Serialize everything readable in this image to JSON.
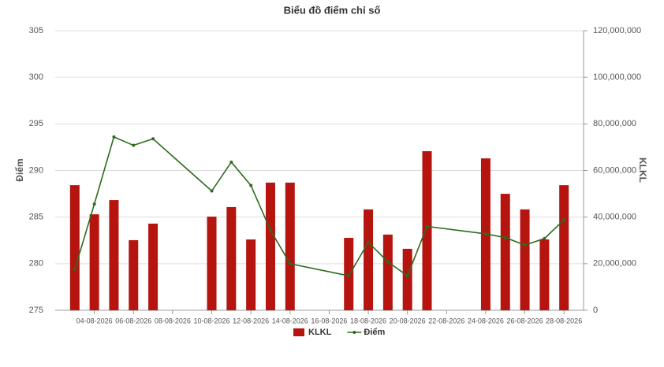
{
  "chart_data": {
    "type": "bar-line",
    "title": "Biểu đồ điểm chỉ số",
    "y_label": "Điểm",
    "y2_label": "KLKL",
    "x": [
      "03-08-2026",
      "04-08-2026",
      "05-08-2026",
      "06-08-2026",
      "07-08-2026",
      "10-08-2026",
      "11-08-2026",
      "12-08-2026",
      "13-08-2026",
      "14-08-2026",
      "17-08-2026",
      "18-08-2026",
      "19-08-2026",
      "20-08-2026",
      "21-08-2026",
      "24-08-2026",
      "25-08-2026",
      "26-08-2026",
      "27-08-2026",
      "28-08-2026"
    ],
    "xlim": [
      "02-08-2026",
      "29-08-2026"
    ],
    "xticks": [
      "04-08-2026",
      "06-08-2026",
      "08-08-2026",
      "10-08-2026",
      "12-08-2026",
      "14-08-2026",
      "16-08-2026",
      "18-08-2026",
      "20-08-2026",
      "22-08-2026",
      "24-08-2026",
      "26-08-2026",
      "28-08-2026"
    ],
    "ylim": [
      275,
      305
    ],
    "yticks": [
      275,
      280,
      285,
      290,
      295,
      300,
      305
    ],
    "y2lim": [
      0,
      120000000
    ],
    "y2ticks": [
      0,
      {
        "value": 20000000,
        "label": "20,000,000"
      },
      {
        "value": 40000000,
        "label": "40,000,000"
      },
      {
        "value": 60000000,
        "label": "60,000,000"
      },
      {
        "value": 80000000,
        "label": "80,000,000"
      },
      {
        "value": 100000000,
        "label": "100,000,000"
      },
      {
        "value": 120000000,
        "label": "120,000,000"
      }
    ],
    "grid": true,
    "legend": "bottom",
    "series": [
      {
        "name": "KLKL",
        "type": "bar",
        "axis": "y2",
        "color": "#b5140f",
        "values": [
          53700000,
          41200000,
          47300000,
          30100000,
          37200000,
          40200000,
          44300000,
          30400000,
          54800000,
          54800000,
          31100000,
          43300000,
          32500000,
          26400000,
          68300000,
          65200000,
          50000000,
          43300000,
          30400000,
          53700000
        ]
      },
      {
        "name": "Điểm",
        "type": "line",
        "axis": "y",
        "color": "#2e6b1f",
        "values": [
          279.4,
          286.4,
          293.6,
          292.7,
          293.4,
          287.8,
          290.9,
          288.4,
          283.6,
          280.0,
          278.7,
          282.3,
          280.2,
          278.7,
          284.0,
          283.2,
          282.8,
          282.0,
          282.7,
          284.7
        ]
      }
    ]
  }
}
